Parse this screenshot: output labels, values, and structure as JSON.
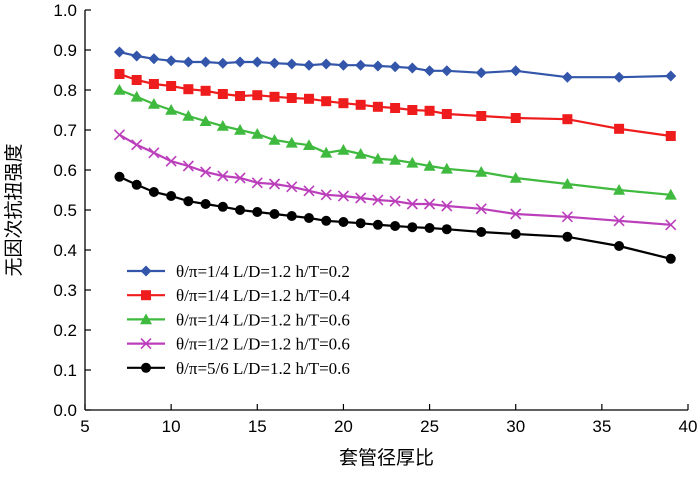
{
  "chart_data": {
    "type": "line",
    "xlabel": "套管径厚比",
    "ylabel": "无因次抗扭强度",
    "xlim": [
      5,
      40
    ],
    "ylim": [
      0.0,
      1.0
    ],
    "xticks": [
      5,
      10,
      15,
      20,
      25,
      30,
      35,
      40
    ],
    "yticks": [
      0.0,
      0.1,
      0.2,
      0.3,
      0.4,
      0.5,
      0.6,
      0.7,
      0.8,
      0.9,
      1.0
    ],
    "ytick_labels": [
      "0.0",
      "0.1",
      "0.2",
      "0.3",
      "0.4",
      "0.5",
      "0.6",
      "0.7",
      "0.8",
      "0.9",
      "1.0"
    ],
    "grid": false,
    "legend_position": "lower-left",
    "series": [
      {
        "name": "θ/π=1/4  L/D=1.2  h/T=0.2",
        "color": "#3355aa",
        "marker": "diamond",
        "x": [
          7,
          8,
          9,
          10,
          11,
          12,
          13,
          14,
          15,
          16,
          17,
          18,
          19,
          20,
          21,
          22,
          23,
          24,
          25,
          26,
          28,
          30,
          33,
          36,
          39
        ],
        "values": [
          0.895,
          0.885,
          0.878,
          0.873,
          0.87,
          0.87,
          0.867,
          0.87,
          0.87,
          0.867,
          0.865,
          0.862,
          0.865,
          0.862,
          0.862,
          0.86,
          0.858,
          0.855,
          0.848,
          0.848,
          0.843,
          0.848,
          0.832,
          0.832,
          0.835
        ]
      },
      {
        "name": "θ/π=1/4  L/D=1.2  h/T=0.4",
        "color": "#ee1c1c",
        "marker": "square",
        "x": [
          7,
          8,
          9,
          10,
          11,
          12,
          13,
          14,
          15,
          16,
          17,
          18,
          19,
          20,
          21,
          22,
          23,
          24,
          25,
          26,
          28,
          30,
          33,
          36,
          39
        ],
        "values": [
          0.84,
          0.825,
          0.815,
          0.81,
          0.802,
          0.798,
          0.79,
          0.785,
          0.787,
          0.783,
          0.78,
          0.778,
          0.772,
          0.767,
          0.763,
          0.758,
          0.755,
          0.75,
          0.748,
          0.74,
          0.735,
          0.73,
          0.727,
          0.703,
          0.685
        ]
      },
      {
        "name": "θ/π=1/4  L/D=1.2  h/T=0.6",
        "color": "#3fba3f",
        "marker": "triangle",
        "x": [
          7,
          8,
          9,
          10,
          11,
          12,
          13,
          14,
          15,
          16,
          17,
          18,
          19,
          20,
          21,
          22,
          23,
          24,
          25,
          26,
          28,
          30,
          33,
          36,
          39
        ],
        "values": [
          0.8,
          0.783,
          0.765,
          0.75,
          0.735,
          0.722,
          0.71,
          0.7,
          0.69,
          0.675,
          0.668,
          0.662,
          0.643,
          0.65,
          0.64,
          0.628,
          0.625,
          0.618,
          0.61,
          0.603,
          0.595,
          0.58,
          0.565,
          0.55,
          0.538
        ]
      },
      {
        "name": "θ/π=1/2  L/D=1.2  h/T=0.6",
        "color": "#bb3fbb",
        "marker": "x",
        "x": [
          7,
          8,
          9,
          10,
          11,
          12,
          13,
          14,
          15,
          16,
          17,
          18,
          19,
          20,
          21,
          22,
          23,
          24,
          25,
          26,
          28,
          30,
          33,
          36,
          39
        ],
        "values": [
          0.688,
          0.663,
          0.643,
          0.622,
          0.61,
          0.595,
          0.585,
          0.58,
          0.568,
          0.565,
          0.558,
          0.548,
          0.538,
          0.535,
          0.53,
          0.525,
          0.522,
          0.515,
          0.515,
          0.51,
          0.503,
          0.49,
          0.483,
          0.473,
          0.463
        ]
      },
      {
        "name": "θ/π=5/6  L/D=1.2  h/T=0.6",
        "color": "#000000",
        "marker": "circle",
        "x": [
          7,
          8,
          9,
          10,
          11,
          12,
          13,
          14,
          15,
          16,
          17,
          18,
          19,
          20,
          21,
          22,
          23,
          24,
          25,
          26,
          28,
          30,
          33,
          36,
          39
        ],
        "values": [
          0.583,
          0.563,
          0.545,
          0.535,
          0.522,
          0.515,
          0.508,
          0.5,
          0.495,
          0.49,
          0.485,
          0.48,
          0.473,
          0.47,
          0.467,
          0.463,
          0.46,
          0.457,
          0.455,
          0.452,
          0.445,
          0.44,
          0.433,
          0.41,
          0.378
        ]
      }
    ]
  }
}
